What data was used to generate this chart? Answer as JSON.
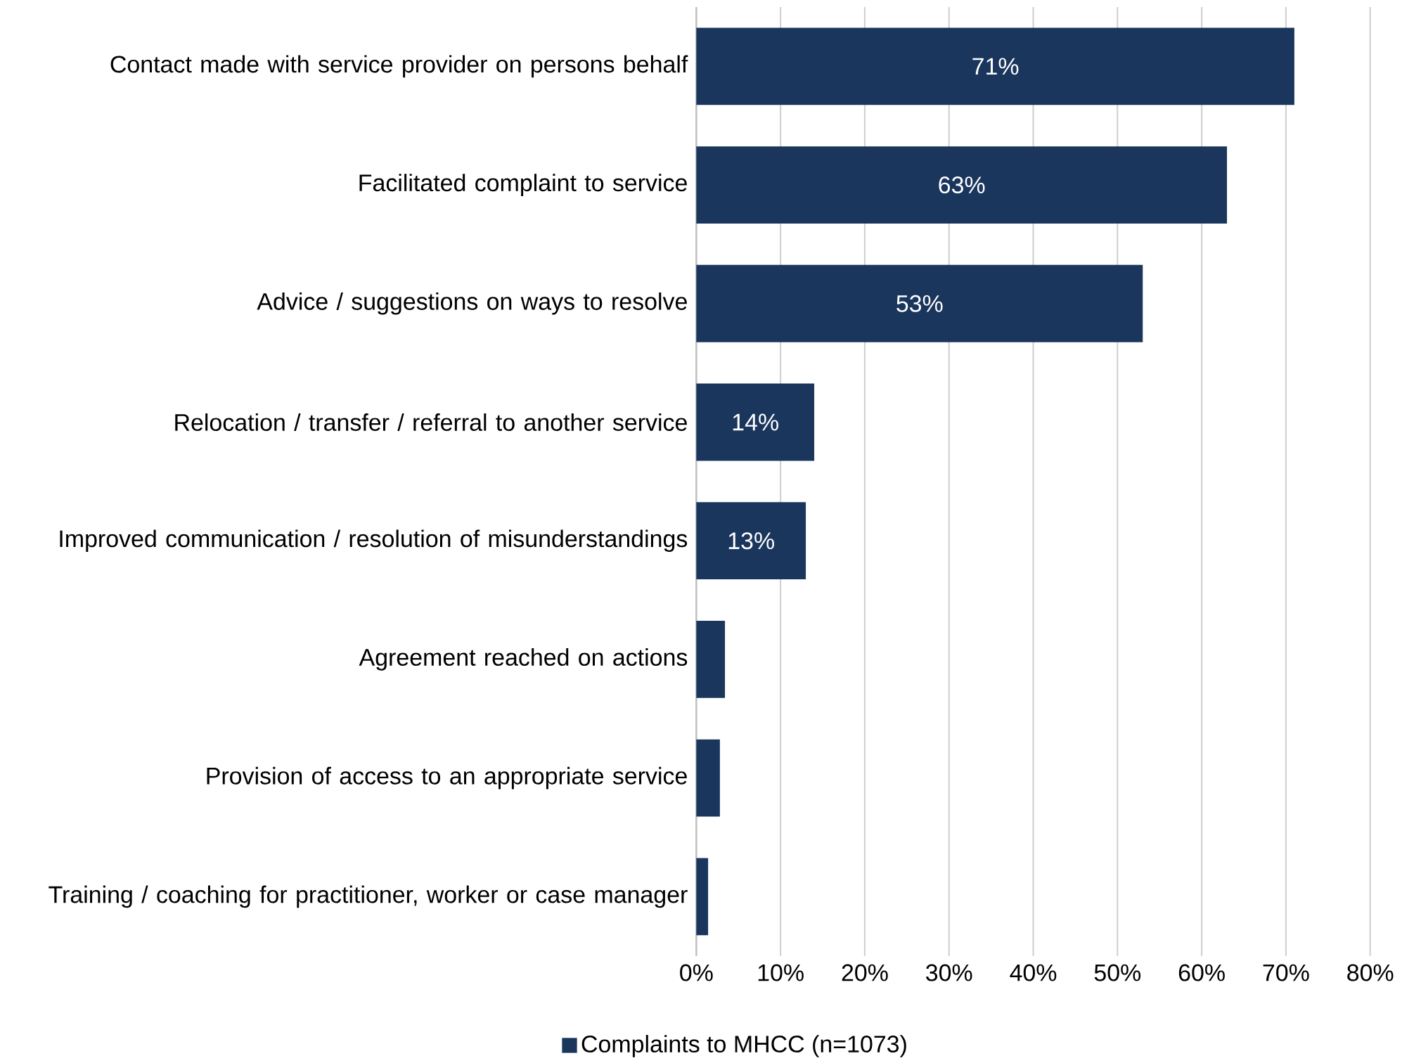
{
  "chart_data": {
    "type": "bar",
    "orientation": "horizontal",
    "categories": [
      "Contact made with service provider on persons behalf",
      "Facilitated complaint to service",
      "Advice / suggestions on ways to resolve",
      "Relocation / transfer / referral to another service",
      "Improved communication / resolution of misunderstandings",
      "Agreement reached on actions",
      "Provision of access to an appropriate service",
      "Training / coaching for practitioner, worker or case manager"
    ],
    "series": [
      {
        "name": "Complaints to MHCC (n=1073)",
        "color": "#1b365d",
        "values": [
          71,
          63,
          53,
          14,
          13,
          3.4,
          2.8,
          1.4
        ],
        "value_labels": [
          "71%",
          "63%",
          "53%",
          "14%",
          "13%",
          null,
          null,
          null
        ]
      }
    ],
    "xlim": [
      0,
      80
    ],
    "xticks": [
      {
        "value": 0,
        "label": "0%"
      },
      {
        "value": 10,
        "label": "10%"
      },
      {
        "value": 20,
        "label": "20%"
      },
      {
        "value": 30,
        "label": "30%"
      },
      {
        "value": 40,
        "label": "40%"
      },
      {
        "value": 50,
        "label": "50%"
      },
      {
        "value": 60,
        "label": "60%"
      },
      {
        "value": 70,
        "label": "70%"
      },
      {
        "value": 80,
        "label": "80%"
      }
    ],
    "grid": "x",
    "legend": "bottom"
  }
}
